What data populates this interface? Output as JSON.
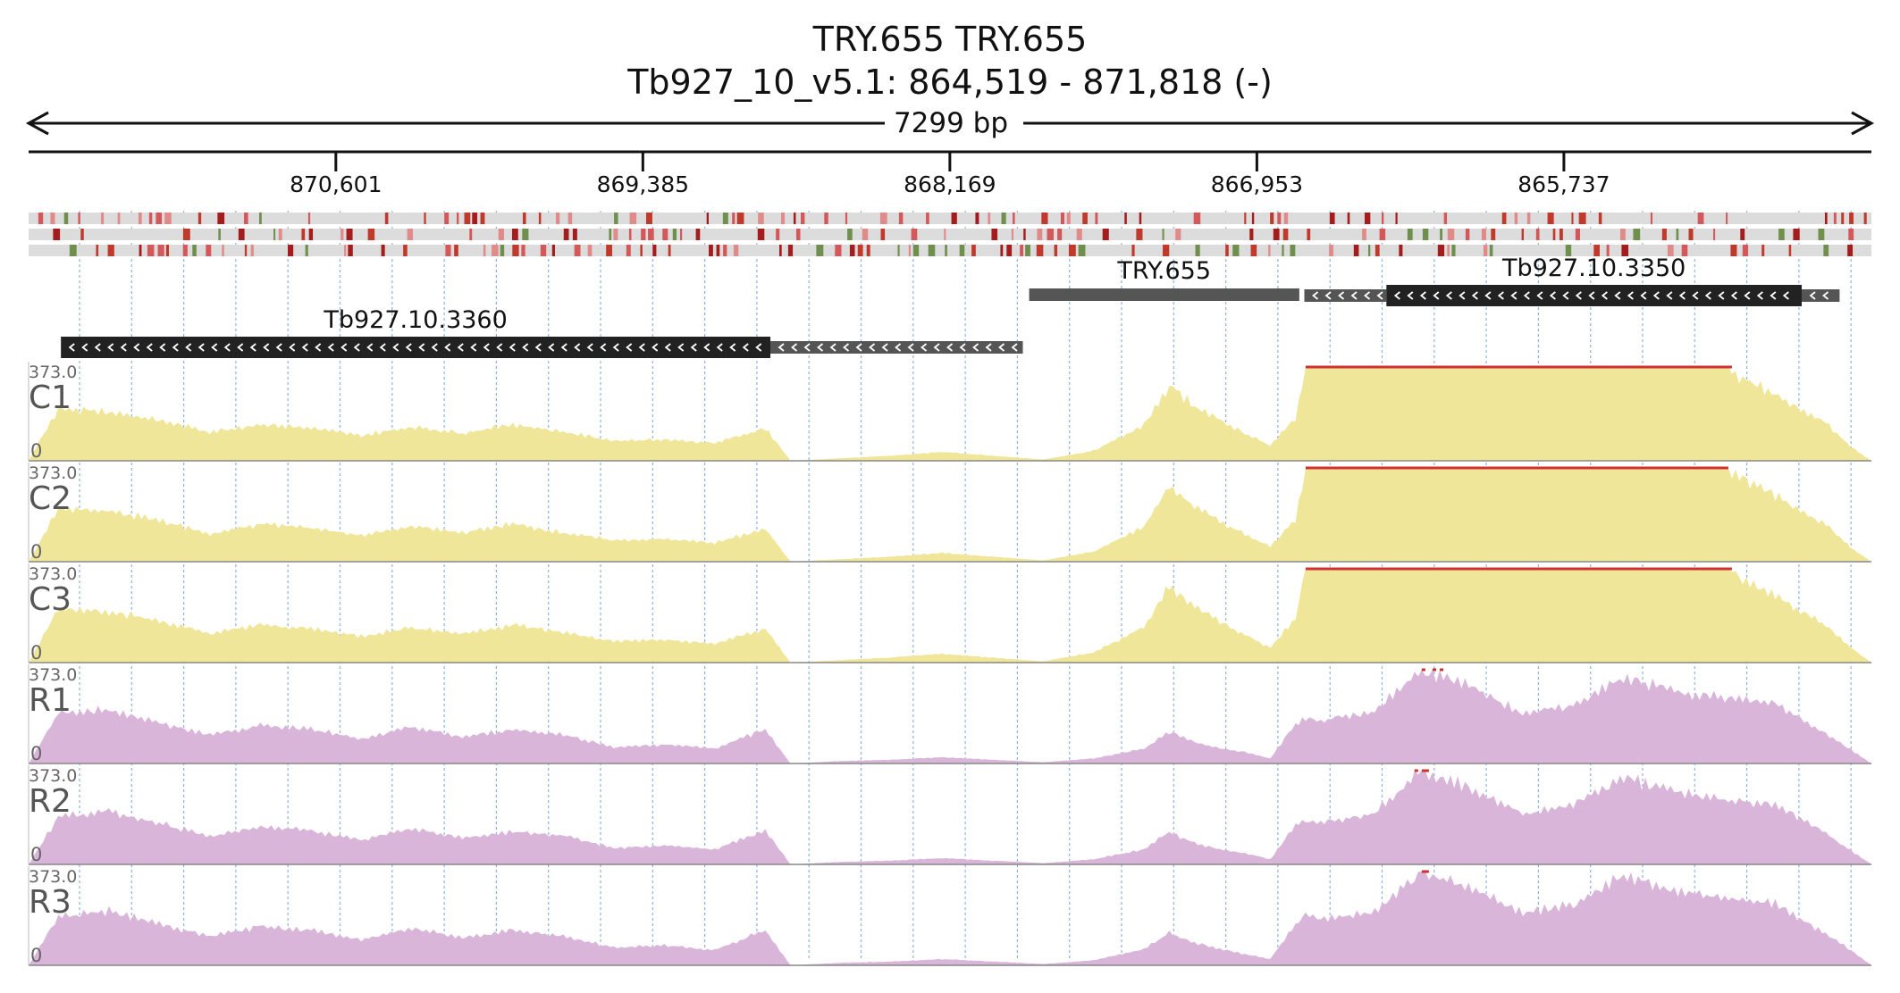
{
  "header": {
    "line1": "TRY.655  TRY.655",
    "line2": "Tb927_10_v5.1: 864,519 - 871,818 (-)"
  },
  "ruler": {
    "span_label": "7299 bp",
    "region_start": 864519,
    "region_end": 871818,
    "strand": "-",
    "ticks": [
      {
        "pos": 870601,
        "label": "870,601"
      },
      {
        "pos": 869385,
        "label": "869,385"
      },
      {
        "pos": 868169,
        "label": "868,169"
      },
      {
        "pos": 866953,
        "label": "866,953"
      },
      {
        "pos": 865737,
        "label": "865,737"
      }
    ]
  },
  "genes": [
    {
      "name": "Tb927.10.3360",
      "label_visible": true,
      "strand": "-",
      "utr": [
        [
          867880,
          868880
        ]
      ],
      "cds": [
        [
          868880,
          871690
        ]
      ],
      "color": "#222222",
      "utr_color": "#555555"
    },
    {
      "name": "TRY.655",
      "label_visible": true,
      "strand": "none",
      "utr": [],
      "cds": [
        [
          866785,
          867855
        ]
      ],
      "color": "#555555",
      "utr_color": "#555555"
    },
    {
      "name": "Tb927.10.3350",
      "label_visible": true,
      "strand": "-",
      "utr": [
        [
          864645,
          864795
        ],
        [
          866440,
          866765
        ]
      ],
      "cds": [
        [
          864795,
          866440
        ]
      ],
      "color": "#222222",
      "utr_color": "#555555"
    }
  ],
  "coverage": {
    "max_label": "373.0",
    "zero_label": "0",
    "tracks": [
      {
        "name": "C1",
        "color": "#efe69a",
        "group": "C"
      },
      {
        "name": "C2",
        "color": "#efe69a",
        "group": "C"
      },
      {
        "name": "C3",
        "color": "#efe69a",
        "group": "C"
      },
      {
        "name": "R1",
        "color": "#d9b6d9",
        "group": "R"
      },
      {
        "name": "R2",
        "color": "#d9b6d9",
        "group": "R"
      },
      {
        "name": "R3",
        "color": "#d9b6d9",
        "group": "R"
      }
    ],
    "clip_color": "#d0302f"
  },
  "chart_data": {
    "type": "area",
    "x_unit": "genomic position (bp)",
    "ylim": [
      0,
      373.0
    ],
    "x": [
      871818,
      871700,
      871500,
      871300,
      871100,
      870900,
      870700,
      870500,
      870300,
      870100,
      869900,
      869700,
      869500,
      869300,
      869100,
      868900,
      868800,
      868600,
      868400,
      868200,
      868000,
      867800,
      867600,
      867400,
      867300,
      867200,
      867100,
      867000,
      866900,
      866800,
      866760,
      866700,
      866500,
      866300,
      866100,
      865900,
      865700,
      865500,
      865300,
      865100,
      864900,
      864700,
      864600,
      864519
    ],
    "series": [
      {
        "name": "C1",
        "values": [
          0,
          210,
          195,
          160,
          115,
          145,
          130,
          100,
          135,
          110,
          145,
          115,
          80,
          85,
          70,
          130,
          0,
          10,
          20,
          35,
          20,
          5,
          40,
          140,
          300,
          220,
          160,
          110,
          60,
          170,
          373,
          373,
          373,
          373,
          373,
          373,
          373,
          373,
          373,
          373,
          260,
          150,
          55,
          0
        ]
      },
      {
        "name": "C2",
        "values": [
          0,
          210,
          200,
          165,
          110,
          150,
          135,
          105,
          140,
          115,
          150,
          115,
          85,
          90,
          75,
          130,
          0,
          10,
          20,
          35,
          20,
          5,
          40,
          140,
          300,
          220,
          160,
          110,
          60,
          170,
          373,
          373,
          373,
          373,
          373,
          373,
          373,
          373,
          373,
          373,
          260,
          150,
          55,
          0
        ]
      },
      {
        "name": "C3",
        "values": [
          0,
          215,
          205,
          165,
          115,
          150,
          135,
          105,
          140,
          115,
          150,
          120,
          85,
          90,
          75,
          135,
          0,
          10,
          20,
          35,
          20,
          5,
          40,
          140,
          305,
          225,
          165,
          110,
          60,
          175,
          373,
          373,
          373,
          373,
          373,
          373,
          373,
          373,
          373,
          373,
          265,
          150,
          60,
          0
        ]
      },
      {
        "name": "R1",
        "values": [
          0,
          200,
          215,
          160,
          115,
          150,
          140,
          95,
          145,
          105,
          135,
          115,
          65,
          75,
          60,
          135,
          0,
          10,
          15,
          25,
          15,
          5,
          20,
          60,
          125,
          85,
          60,
          45,
          20,
          160,
          180,
          170,
          200,
          373,
          300,
          200,
          230,
          340,
          290,
          260,
          240,
          120,
          55,
          0
        ]
      },
      {
        "name": "R2",
        "values": [
          0,
          190,
          210,
          165,
          110,
          150,
          135,
          95,
          145,
          105,
          130,
          115,
          65,
          75,
          60,
          135,
          0,
          10,
          15,
          25,
          15,
          5,
          20,
          60,
          130,
          85,
          60,
          45,
          20,
          155,
          175,
          170,
          200,
          373,
          300,
          200,
          240,
          345,
          290,
          255,
          240,
          125,
          55,
          0
        ]
      },
      {
        "name": "R3",
        "values": [
          0,
          195,
          215,
          165,
          115,
          155,
          140,
          100,
          150,
          110,
          140,
          115,
          70,
          80,
          60,
          140,
          0,
          10,
          15,
          25,
          15,
          5,
          20,
          65,
          130,
          90,
          65,
          45,
          25,
          165,
          200,
          185,
          205,
          373,
          305,
          210,
          240,
          360,
          300,
          265,
          245,
          125,
          60,
          0
        ]
      }
    ]
  }
}
